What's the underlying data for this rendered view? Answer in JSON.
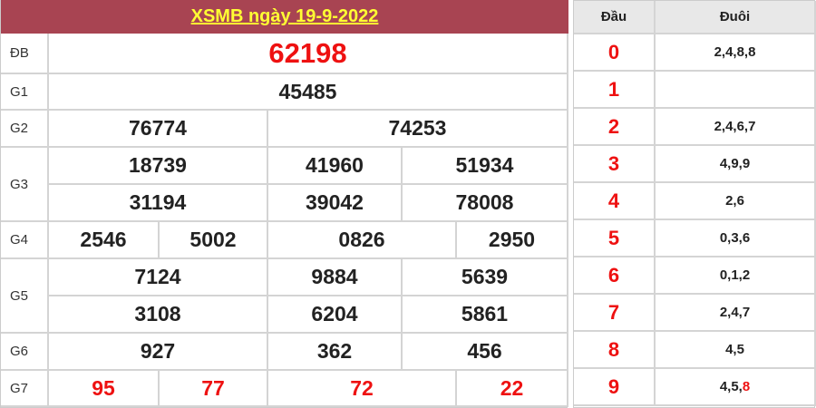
{
  "title": "XSMB ngày 19-9-2022",
  "colors": {
    "header_bg": "#a84452",
    "header_text": "#ffff33",
    "highlight": "#ee1111"
  },
  "prizes": {
    "db": {
      "label": "ĐB",
      "numbers": [
        "62198"
      ]
    },
    "g1": {
      "label": "G1",
      "numbers": [
        "45485"
      ]
    },
    "g2": {
      "label": "G2",
      "numbers": [
        "76774",
        "74253"
      ]
    },
    "g3": {
      "label": "G3",
      "numbers": [
        "18739",
        "41960",
        "51934",
        "31194",
        "39042",
        "78008"
      ]
    },
    "g4": {
      "label": "G4",
      "numbers": [
        "2546",
        "5002",
        "0826",
        "2950"
      ]
    },
    "g5": {
      "label": "G5",
      "numbers": [
        "7124",
        "9884",
        "5639",
        "3108",
        "6204",
        "5861"
      ]
    },
    "g6": {
      "label": "G6",
      "numbers": [
        "927",
        "362",
        "456"
      ]
    },
    "g7": {
      "label": "G7",
      "numbers": [
        "95",
        "77",
        "72",
        "22"
      ]
    }
  },
  "loto": {
    "head_label": "Đầu",
    "tail_label": "Đuôi",
    "rows": [
      {
        "head": "0",
        "tail": "2,4,8,8"
      },
      {
        "head": "1",
        "tail": ""
      },
      {
        "head": "2",
        "tail": "2,4,6,7"
      },
      {
        "head": "3",
        "tail": "4,9,9"
      },
      {
        "head": "4",
        "tail": "2,6"
      },
      {
        "head": "5",
        "tail": "0,3,6"
      },
      {
        "head": "6",
        "tail": "0,1,2"
      },
      {
        "head": "7",
        "tail": "2,4,7"
      },
      {
        "head": "8",
        "tail": "4,5"
      },
      {
        "head": "9",
        "tail": "4,5,",
        "tail_highlight": "8"
      }
    ]
  }
}
